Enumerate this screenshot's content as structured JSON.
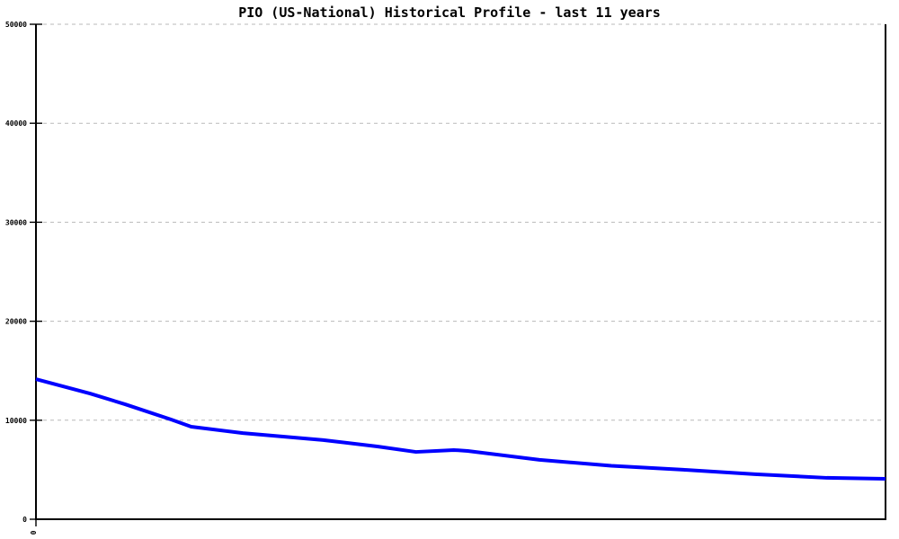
{
  "chart_data": {
    "type": "line",
    "title": "PIO (US-National) Historical Profile - last 11 years",
    "xlabel": "",
    "ylabel": "",
    "xlim": [
      0,
      11
    ],
    "ylim": [
      0,
      50000
    ],
    "grid": "horizontal-dashed",
    "legend": "none",
    "x_ticks": [
      {
        "value": 0,
        "label": "0"
      }
    ],
    "y_ticks": [
      {
        "value": 0,
        "label": "0"
      },
      {
        "value": 10000,
        "label": "10000"
      },
      {
        "value": 20000,
        "label": "20000"
      },
      {
        "value": 30000,
        "label": "30000"
      },
      {
        "value": 40000,
        "label": "40000"
      },
      {
        "value": 50000,
        "label": "50000"
      }
    ],
    "series": [
      {
        "name": "PIO (US-National)",
        "color": "#0000ff",
        "x": [
          0,
          0.7,
          1.16,
          1.75,
          2.01,
          2.68,
          3.72,
          4.42,
          4.92,
          5.41,
          5.59,
          6.52,
          7.45,
          8.38,
          9.31,
          10.24,
          11
        ],
        "values": [
          14150,
          12700,
          11600,
          10070,
          9350,
          8700,
          8000,
          7350,
          6800,
          6990,
          6900,
          6000,
          5400,
          5000,
          4550,
          4180,
          4080
        ]
      }
    ]
  },
  "colors": {
    "line": "#0000ff",
    "grid": "#b9b9b9",
    "axis": "#000000",
    "text": "#000000",
    "background": "#ffffff"
  }
}
